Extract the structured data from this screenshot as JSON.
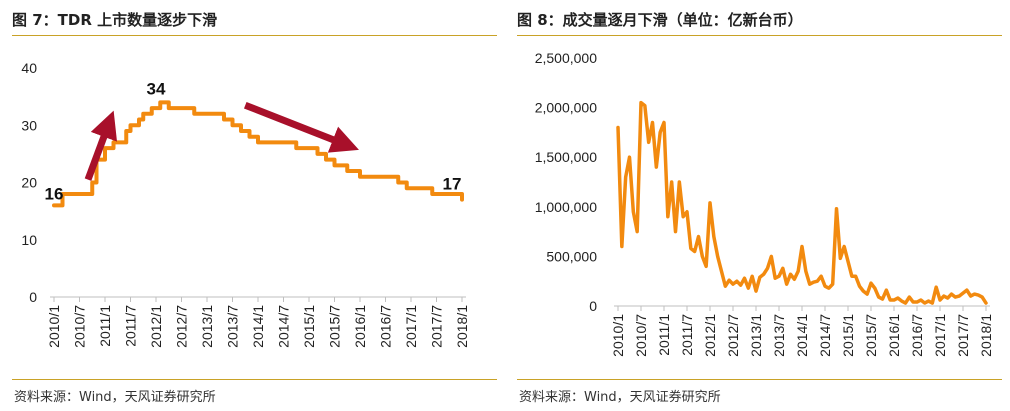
{
  "colors": {
    "series": "#f28a0f",
    "arrow": "#a8102a",
    "rule": "#c9a227",
    "axis": "#bfbfbf"
  },
  "chart_data": [
    {
      "type": "line",
      "title": "图 7：TDR 上市数量逐步下滑",
      "source": "资料来源：Wind，天风证券研究所",
      "ylim": [
        0,
        40
      ],
      "yticks": [
        "0",
        "10",
        "20",
        "30",
        "40"
      ],
      "xlim": [
        "2010/1",
        "2018/1"
      ],
      "xticks": [
        "2010/1",
        "2010/7",
        "2011/1",
        "2011/7",
        "2012/1",
        "2012/7",
        "2013/1",
        "2013/7",
        "2014/1",
        "2014/7",
        "2015/1",
        "2015/7",
        "2016/1",
        "2016/7",
        "2017/1",
        "2017/7",
        "2018/1"
      ],
      "grid": false,
      "annotations": [
        {
          "text": "16",
          "x": "2010/1",
          "y": 16
        },
        {
          "text": "34",
          "x": "2012/1",
          "y": 34
        },
        {
          "text": "17",
          "x": "2018/1",
          "y": 17
        }
      ],
      "arrows": [
        {
          "from": [
            "2010/9",
            20.5
          ],
          "to": [
            "2011/2",
            30.5
          ]
        },
        {
          "from": [
            "2013/10",
            33.5
          ],
          "to": [
            "2015/10",
            26.5
          ]
        }
      ],
      "series": [
        {
          "x": [
            "2010/1",
            "2010/3",
            "2010/6",
            "2010/9",
            "2010/10",
            "2010/11",
            "2011/1",
            "2011/3",
            "2011/6",
            "2011/7",
            "2011/9",
            "2011/10",
            "2011/12",
            "2012/2",
            "2012/4",
            "2012/8",
            "2012/10",
            "2013/5",
            "2013/7",
            "2013/9",
            "2013/11",
            "2014/1",
            "2014/4",
            "2014/7",
            "2014/10",
            "2015/1",
            "2015/3",
            "2015/5",
            "2015/7",
            "2015/10",
            "2016/1",
            "2016/4",
            "2016/10",
            "2016/12",
            "2017/2",
            "2017/6",
            "2017/11",
            "2018/1"
          ],
          "y": [
            16,
            18,
            18,
            18,
            20,
            24,
            26,
            27,
            29,
            30,
            31,
            32,
            33,
            34,
            33,
            33,
            32,
            31,
            30,
            29,
            28,
            27,
            27,
            27,
            26,
            26,
            25,
            24,
            23,
            22,
            21,
            21,
            20,
            19,
            19,
            18,
            18,
            17
          ]
        }
      ]
    },
    {
      "type": "line",
      "title": "图 8：成交量逐月下滑（单位：亿新台币）",
      "source": "资料来源：Wind，天风证券研究所",
      "ylim": [
        0,
        2500000
      ],
      "yticks": [
        "0",
        "500,000",
        "1,000,000",
        "1,500,000",
        "2,000,000",
        "2,500,000"
      ],
      "xlim": [
        "2010/1",
        "2018/1"
      ],
      "xticks": [
        "2010/1",
        "2010/7",
        "2011/1",
        "2011/7",
        "2012/1",
        "2012/7",
        "2013/1",
        "2013/7",
        "2014/1",
        "2014/7",
        "2015/1",
        "2015/7",
        "2016/1",
        "2016/7",
        "2017/1",
        "2017/7",
        "2018/1"
      ],
      "grid": false,
      "series": [
        {
          "x": [
            "2010/1",
            "2010/2",
            "2010/3",
            "2010/4",
            "2010/5",
            "2010/6",
            "2010/7",
            "2010/8",
            "2010/9",
            "2010/10",
            "2010/11",
            "2010/12",
            "2011/1",
            "2011/2",
            "2011/3",
            "2011/4",
            "2011/5",
            "2011/6",
            "2011/7",
            "2011/8",
            "2011/9",
            "2011/10",
            "2011/11",
            "2011/12",
            "2012/1",
            "2012/2",
            "2012/3",
            "2012/4",
            "2012/5",
            "2012/6",
            "2012/7",
            "2012/8",
            "2012/9",
            "2012/10",
            "2012/11",
            "2012/12",
            "2013/1",
            "2013/2",
            "2013/3",
            "2013/4",
            "2013/5",
            "2013/6",
            "2013/7",
            "2013/8",
            "2013/9",
            "2013/10",
            "2013/11",
            "2013/12",
            "2014/1",
            "2014/2",
            "2014/3",
            "2014/4",
            "2014/5",
            "2014/6",
            "2014/7",
            "2014/8",
            "2014/9",
            "2014/10",
            "2014/11",
            "2014/12",
            "2015/1",
            "2015/2",
            "2015/3",
            "2015/4",
            "2015/5",
            "2015/6",
            "2015/7",
            "2015/8",
            "2015/9",
            "2015/10",
            "2015/11",
            "2015/12",
            "2016/1",
            "2016/2",
            "2016/3",
            "2016/4",
            "2016/5",
            "2016/6",
            "2016/7",
            "2016/8",
            "2016/9",
            "2016/10",
            "2016/11",
            "2016/12",
            "2017/1",
            "2017/2",
            "2017/3",
            "2017/4",
            "2017/5",
            "2017/6",
            "2017/7",
            "2017/8",
            "2017/9",
            "2017/10",
            "2017/11",
            "2017/12",
            "2018/1"
          ],
          "y": [
            1800000,
            600000,
            1300000,
            1500000,
            950000,
            750000,
            2050000,
            2020000,
            1650000,
            1850000,
            1400000,
            1750000,
            1850000,
            900000,
            1250000,
            750000,
            1250000,
            900000,
            950000,
            580000,
            550000,
            700000,
            500000,
            400000,
            1040000,
            700000,
            500000,
            350000,
            200000,
            260000,
            220000,
            250000,
            210000,
            280000,
            180000,
            300000,
            150000,
            290000,
            320000,
            380000,
            500000,
            280000,
            300000,
            380000,
            220000,
            320000,
            270000,
            350000,
            600000,
            350000,
            220000,
            240000,
            250000,
            300000,
            200000,
            180000,
            220000,
            980000,
            480000,
            600000,
            450000,
            300000,
            300000,
            200000,
            150000,
            120000,
            230000,
            180000,
            90000,
            70000,
            160000,
            60000,
            60000,
            80000,
            50000,
            30000,
            90000,
            40000,
            40000,
            60000,
            30000,
            50000,
            30000,
            190000,
            60000,
            100000,
            80000,
            120000,
            90000,
            100000,
            130000,
            160000,
            100000,
            120000,
            110000,
            90000,
            30000
          ]
        }
      ]
    }
  ]
}
